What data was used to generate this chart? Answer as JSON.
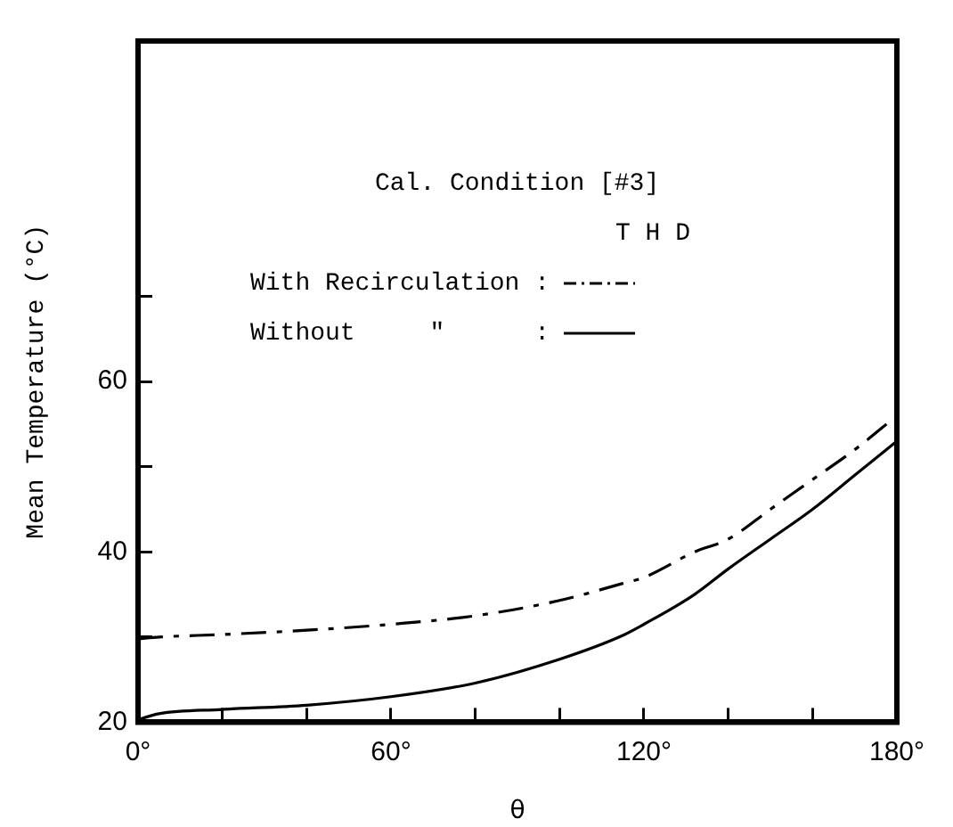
{
  "chart_data": {
    "type": "line",
    "xlabel": "θ",
    "ylabel": "Mean Temperature (°C)",
    "legend_title": "Cal. Condition [#3]",
    "annotations": [
      "T H D"
    ],
    "legend": "top",
    "grid": false,
    "marker": "none",
    "x": [
      0,
      5,
      20,
      40,
      60,
      80,
      100,
      115,
      120,
      132,
      140,
      150,
      160,
      170,
      180
    ],
    "xlim": [
      0,
      180
    ],
    "xticks": [
      {
        "value": 0,
        "label": "0°"
      },
      {
        "value": 20,
        "label": null
      },
      {
        "value": 40,
        "label": null
      },
      {
        "value": 60,
        "label": "60°"
      },
      {
        "value": 80,
        "label": null
      },
      {
        "value": 100,
        "label": null
      },
      {
        "value": 120,
        "label": "120°"
      },
      {
        "value": 140,
        "label": null
      },
      {
        "value": 160,
        "label": null
      },
      {
        "value": 180,
        "label": "180°"
      }
    ],
    "ylim": [
      20,
      100
    ],
    "yticks": [
      20,
      {
        "value": 30,
        "label": null
      },
      40,
      {
        "value": 50,
        "label": null
      },
      60,
      {
        "value": 70,
        "label": null
      }
    ],
    "series": [
      {
        "name": "With Recirculation :",
        "color": "#000000",
        "line_style": "dashed",
        "values": [
          29.8,
          30,
          30.3,
          30.8,
          31.5,
          32.5,
          34.3,
          36.3,
          37,
          40,
          41.5,
          45,
          48.5,
          52,
          56
        ]
      },
      {
        "name": "Without     ″      :",
        "color": "#000000",
        "line_style": "solid",
        "values": [
          20.3,
          21,
          21.5,
          22,
          23,
          24.6,
          27.4,
          30.2,
          31.5,
          35,
          38,
          41.5,
          45,
          49,
          53
        ]
      }
    ]
  }
}
